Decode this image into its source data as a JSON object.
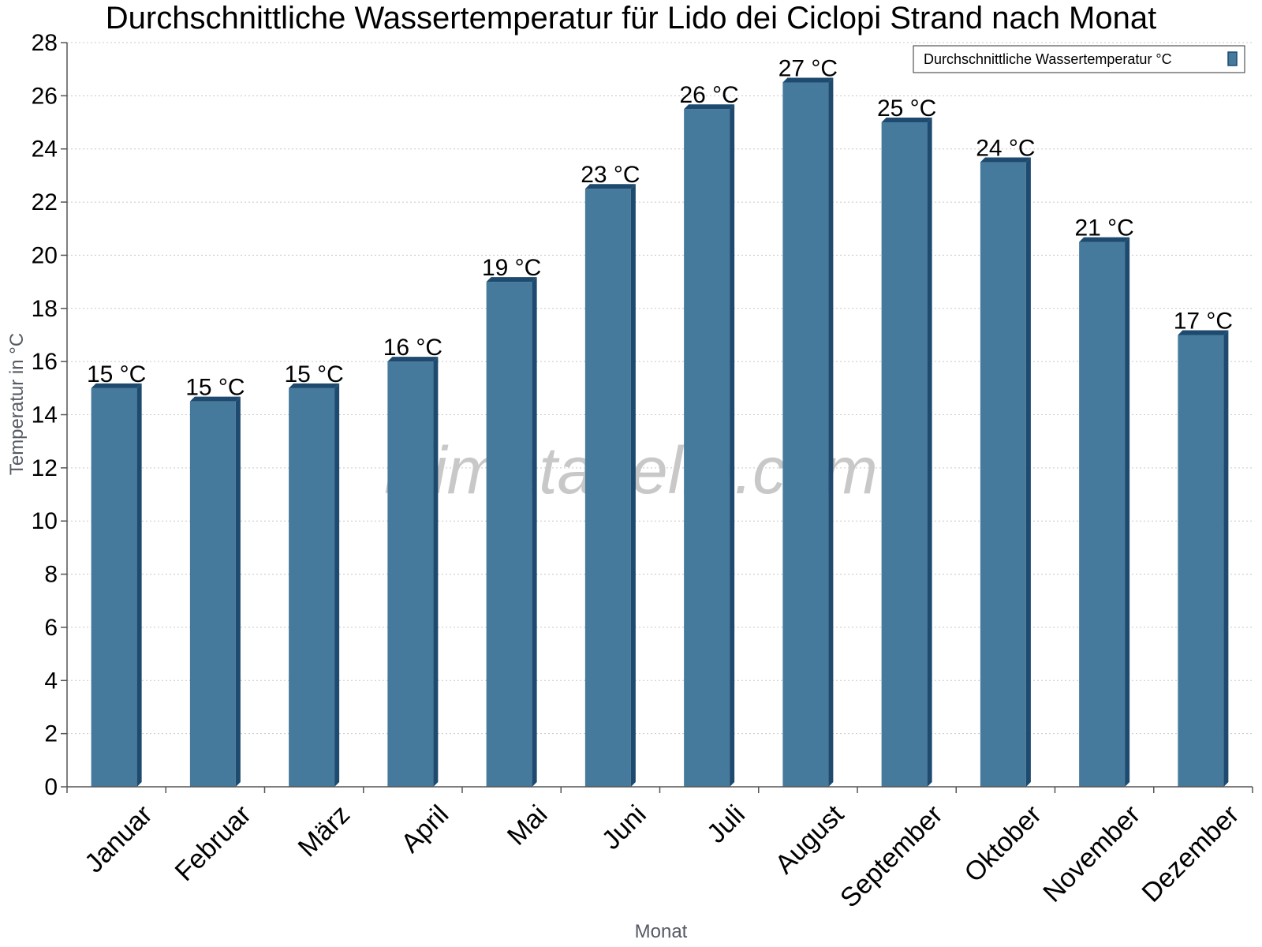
{
  "chart_data": {
    "type": "bar",
    "title": "Durchschnittliche Wassertemperatur für Lido dei Ciclopi Strand nach Monat",
    "xlabel": "Monat",
    "ylabel": "Temperatur in °C",
    "ylim": [
      0,
      28
    ],
    "yticks": [
      "0",
      "2",
      "4",
      "6",
      "8",
      "10",
      "12",
      "14",
      "16",
      "18",
      "20",
      "22",
      "24",
      "26",
      "28"
    ],
    "categories": [
      "Januar",
      "Februar",
      "März",
      "April",
      "Mai",
      "Juni",
      "Juli",
      "August",
      "September",
      "Oktober",
      "November",
      "Dezember"
    ],
    "series": [
      {
        "name": "Durchschnittliche Wassertemperatur °C",
        "values": [
          15,
          14.5,
          15,
          16,
          19,
          22.5,
          25.5,
          26.5,
          25,
          23.5,
          20.5,
          17
        ],
        "labels": [
          "15 °C",
          "15 °C",
          "15 °C",
          "16 °C",
          "19 °C",
          "23 °C",
          "26 °C",
          "27 °C",
          "25 °C",
          "24 °C",
          "21 °C",
          "17 °C"
        ]
      }
    ],
    "grid": true,
    "legend_position": "top-right",
    "colors": {
      "bar": "#467a9c",
      "bar_dark": "#1d4a6e"
    }
  },
  "watermark": "klimatabelle.com"
}
